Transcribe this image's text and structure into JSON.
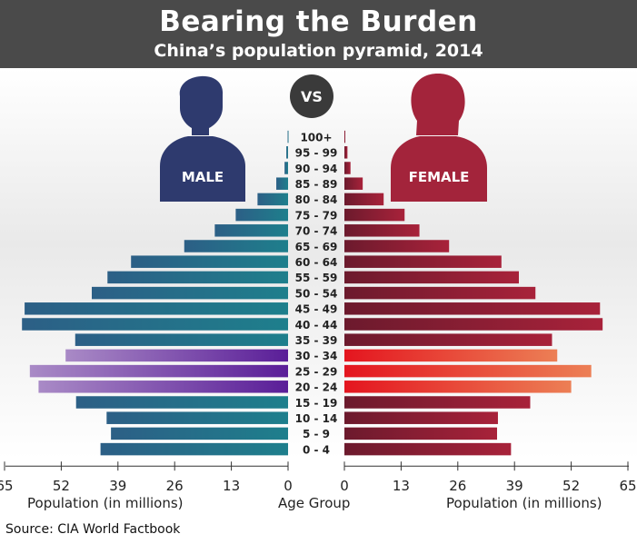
{
  "header": {
    "title": "Bearing the Burden",
    "subtitle": "China’s population pyramid, 2014"
  },
  "labels": {
    "vs": "VS",
    "male": "MALE",
    "female": "FEMALE",
    "x_left": "Population (in millions)",
    "x_center": "Age Group",
    "x_right": "Population (in millions)",
    "source": "Source: CIA World Factbook"
  },
  "colors": {
    "male_teal": "#1e7a8c",
    "male_navy": "#2b3a6b",
    "male_purple": "#6a2ba0",
    "male_lilac": "#a27dc0",
    "female_red": "#9c1f35",
    "female_maroon": "#6e1a2c",
    "female_bright": "#e8202e",
    "female_orange": "#ea7a50",
    "header_bg": "#4a4a4a"
  },
  "chart_data": {
    "type": "bar",
    "orientation": "horizontal-pyramid",
    "categories": [
      "100+",
      "95 - 99",
      "90 - 94",
      "85 - 89",
      "80 - 84",
      "75 - 79",
      "70 - 74",
      "65 - 69",
      "60 - 64",
      "55 - 59",
      "50 - 54",
      "45 - 49",
      "40 - 44",
      "35 - 39",
      "30 - 34",
      "25 - 29",
      "20 - 24",
      "15 - 19",
      "10 - 14",
      "5 - 9",
      "0 - 4"
    ],
    "highlight_categories": [
      "30 - 34",
      "25 - 29",
      "20 - 24"
    ],
    "series": [
      {
        "name": "MALE",
        "values": [
          0.1,
          0.4,
          0.8,
          2.7,
          7.0,
          12.0,
          16.8,
          23.8,
          36.0,
          41.4,
          45.0,
          60.4,
          61.0,
          48.8,
          51.0,
          59.2,
          57.2,
          48.6,
          41.6,
          40.6,
          43.0
        ]
      },
      {
        "name": "FEMALE",
        "values": [
          0.2,
          0.7,
          1.4,
          4.2,
          9.0,
          13.8,
          17.2,
          24.0,
          36.0,
          40.0,
          43.8,
          58.6,
          59.2,
          47.6,
          48.8,
          56.6,
          52.0,
          42.6,
          35.2,
          35.0,
          38.2
        ]
      }
    ],
    "x_ticks": [
      0,
      13,
      26,
      39,
      52,
      65
    ],
    "xlim": [
      0,
      65
    ],
    "xlabel_left": "Population (in millions)",
    "xlabel_center": "Age Group",
    "xlabel_right": "Population (in millions)"
  }
}
